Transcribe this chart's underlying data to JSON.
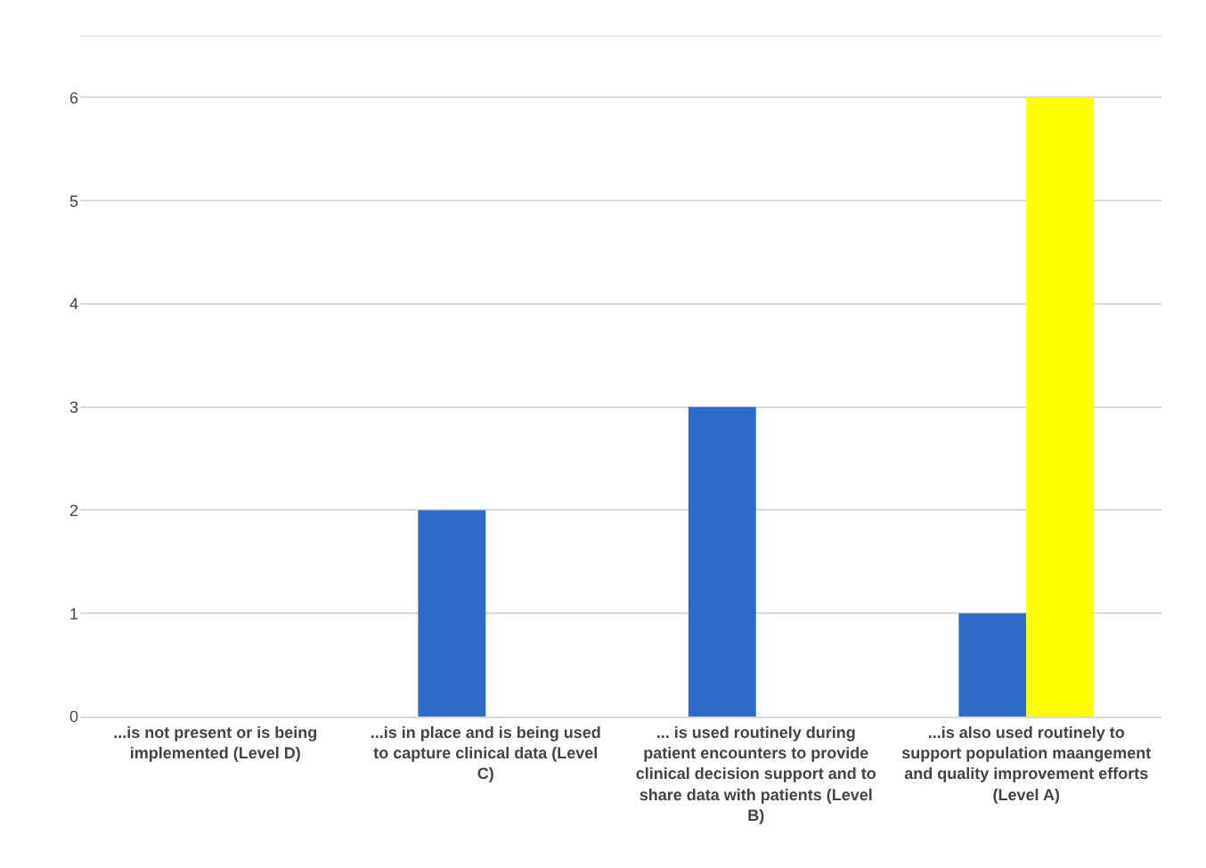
{
  "chart_data": {
    "type": "bar",
    "categories": [
      "...is not present or is being implemented (Level D)",
      "...is in place and is being used to capture clinical data (Level C)",
      "... is used routinely during patient encounters to provide clinical decision support and to share data with patients (Level B)",
      "...is also used routinely to support population maangement and quality improvement efforts (Level A)"
    ],
    "series": [
      {
        "color": "#2e6bc9",
        "values": [
          0,
          2,
          3,
          1
        ]
      },
      {
        "color": "#ffff00",
        "values": [
          null,
          null,
          null,
          6
        ]
      }
    ],
    "ylim": [
      0,
      6.6
    ],
    "yticks": [
      0,
      1,
      2,
      3,
      4,
      5,
      6
    ],
    "grid": "y"
  }
}
